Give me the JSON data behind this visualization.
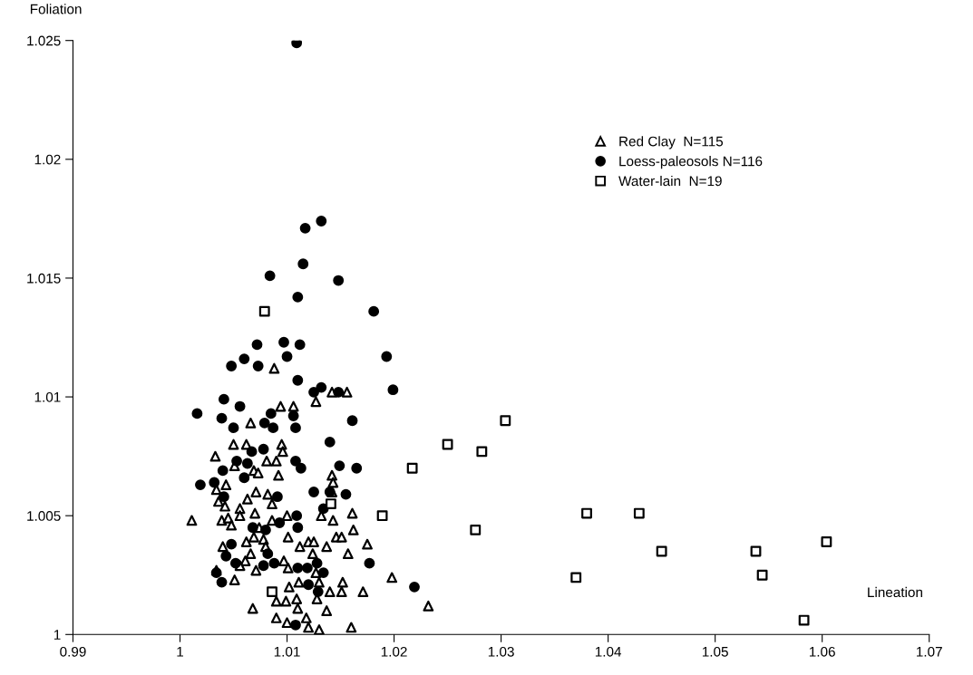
{
  "chart_data": {
    "type": "scatter",
    "xlabel": "Lineation",
    "ylabel": "Foliation",
    "xlim": [
      0.99,
      1.07
    ],
    "ylim": [
      1,
      1.025
    ],
    "xticks": [
      0.99,
      1,
      1.01,
      1.02,
      1.03,
      1.04,
      1.05,
      1.06,
      1.07
    ],
    "yticks": [
      1,
      1.005,
      1.01,
      1.015,
      1.02,
      1.025
    ],
    "grid": false,
    "legend": "top right",
    "series": [
      {
        "name": "Red Clay  N=115",
        "color": "#000000",
        "marker": "triangle",
        "x": [
          1.0094,
          1.0106,
          1.0127,
          1.0066,
          1.005,
          1.0062,
          1.0095,
          1.0033,
          1.0081,
          1.009,
          1.0096,
          1.0069,
          1.0073,
          1.0092,
          1.0051,
          1.0043,
          1.0142,
          1.0143,
          1.0034,
          1.0071,
          1.0082,
          1.0063,
          1.0036,
          1.0086,
          1.0056,
          1.0042,
          1.0142,
          1.0011,
          1.0039,
          1.0045,
          1.0056,
          1.007,
          1.0048,
          1.0086,
          1.01,
          1.0132,
          1.0143,
          1.0161,
          1.0074,
          1.0101,
          1.0146,
          1.0151,
          1.0162,
          1.0175,
          1.004,
          1.0062,
          1.0069,
          1.0078,
          1.0112,
          1.012,
          1.0125,
          1.0137,
          1.0157,
          1.0066,
          1.008,
          1.0124,
          1.0097,
          1.0061,
          1.0056,
          1.0071,
          1.0101,
          1.0127,
          1.0034,
          1.0051,
          1.0102,
          1.0111,
          1.013,
          1.0152,
          1.0151,
          1.014,
          1.0171,
          1.0198,
          1.009,
          1.0099,
          1.0109,
          1.0128,
          1.0068,
          1.009,
          1.011,
          1.0118,
          1.0137,
          1.01,
          1.012,
          1.013,
          1.016,
          1.0088,
          1.0142,
          1.0156,
          1.0232
        ],
        "values": [
          1.0096,
          1.0096,
          1.0098,
          1.0089,
          1.008,
          1.008,
          1.008,
          1.0075,
          1.0073,
          1.0073,
          1.0077,
          1.0069,
          1.0068,
          1.0067,
          1.0071,
          1.0063,
          1.0067,
          1.0064,
          1.0061,
          1.006,
          1.0059,
          1.0057,
          1.0056,
          1.0055,
          1.0053,
          1.0054,
          1.006,
          1.0048,
          1.0048,
          1.0049,
          1.005,
          1.0051,
          1.0046,
          1.0048,
          1.005,
          1.005,
          1.0048,
          1.0051,
          1.0045,
          1.0041,
          1.0041,
          1.0041,
          1.0044,
          1.0038,
          1.0037,
          1.0039,
          1.0041,
          1.004,
          1.0037,
          1.0039,
          1.0039,
          1.0037,
          1.0034,
          1.0034,
          1.0037,
          1.0034,
          1.0031,
          1.0031,
          1.0029,
          1.0027,
          1.0028,
          1.0026,
          1.0027,
          1.0023,
          1.002,
          1.0022,
          1.0022,
          1.0022,
          1.0018,
          1.0018,
          1.0018,
          1.0024,
          1.0014,
          1.0014,
          1.0015,
          1.0015,
          1.0011,
          1.0007,
          1.0011,
          1.0007,
          1.001,
          1.0005,
          1.0003,
          1.0002,
          1.0003,
          1.0112,
          1.0102,
          1.0102,
          1.0012
        ]
      },
      {
        "name": "Loess-paleosols N=116",
        "color": "#000000",
        "marker": "circle",
        "x": [
          1.0109,
          1.0117,
          1.0132,
          1.0115,
          1.0084,
          1.0148,
          1.011,
          1.0181,
          1.0072,
          1.0097,
          1.0112,
          1.01,
          1.006,
          1.0048,
          1.0073,
          1.011,
          1.0193,
          1.0199,
          1.0125,
          1.0132,
          1.0148,
          1.0041,
          1.0056,
          1.0016,
          1.0039,
          1.005,
          1.0085,
          1.0079,
          1.0087,
          1.0106,
          1.0108,
          1.0161,
          1.014,
          1.0067,
          1.0078,
          1.0053,
          1.0063,
          1.004,
          1.006,
          1.0108,
          1.0113,
          1.0149,
          1.0165,
          1.0019,
          1.0032,
          1.0041,
          1.0125,
          1.014,
          1.0155,
          1.0091,
          1.0134,
          1.0109,
          1.0093,
          1.011,
          1.0068,
          1.008,
          1.0048,
          1.0082,
          1.0043,
          1.0052,
          1.0078,
          1.0088,
          1.0034,
          1.0039,
          1.011,
          1.0119,
          1.0128,
          1.0134,
          1.012,
          1.0129,
          1.0177,
          1.0108,
          1.0219
        ],
        "values": [
          1.0249,
          1.0171,
          1.0174,
          1.0156,
          1.0151,
          1.0149,
          1.0142,
          1.0136,
          1.0122,
          1.0123,
          1.0122,
          1.0117,
          1.0116,
          1.0113,
          1.0113,
          1.0107,
          1.0117,
          1.0103,
          1.0102,
          1.0104,
          1.0102,
          1.0099,
          1.0096,
          1.0093,
          1.0091,
          1.0087,
          1.0093,
          1.0089,
          1.0087,
          1.0092,
          1.0087,
          1.009,
          1.0081,
          1.0077,
          1.0078,
          1.0073,
          1.0072,
          1.0069,
          1.0066,
          1.0073,
          1.007,
          1.0071,
          1.007,
          1.0063,
          1.0064,
          1.0058,
          1.006,
          1.006,
          1.0059,
          1.0058,
          1.0053,
          1.005,
          1.0047,
          1.0045,
          1.0045,
          1.0044,
          1.0038,
          1.0034,
          1.0033,
          1.003,
          1.0029,
          1.003,
          1.0026,
          1.0022,
          1.0028,
          1.0028,
          1.003,
          1.0026,
          1.0021,
          1.0018,
          1.003,
          1.0004,
          1.002
        ]
      },
      {
        "name": "Water-lain  N=19",
        "color": "#000000",
        "marker": "square",
        "x": [
          1.0079,
          1.0189,
          1.0217,
          1.025,
          1.0282,
          1.0304,
          1.0276,
          1.037,
          1.038,
          1.0429,
          1.045,
          1.0538,
          1.0544,
          1.0583,
          1.0604,
          1.0141,
          1.0086
        ],
        "values": [
          1.0136,
          1.005,
          1.007,
          1.008,
          1.0077,
          1.009,
          1.0044,
          1.0024,
          1.0051,
          1.0051,
          1.0035,
          1.0035,
          1.0025,
          1.0006,
          1.0039,
          1.0055,
          1.0018
        ]
      }
    ]
  }
}
